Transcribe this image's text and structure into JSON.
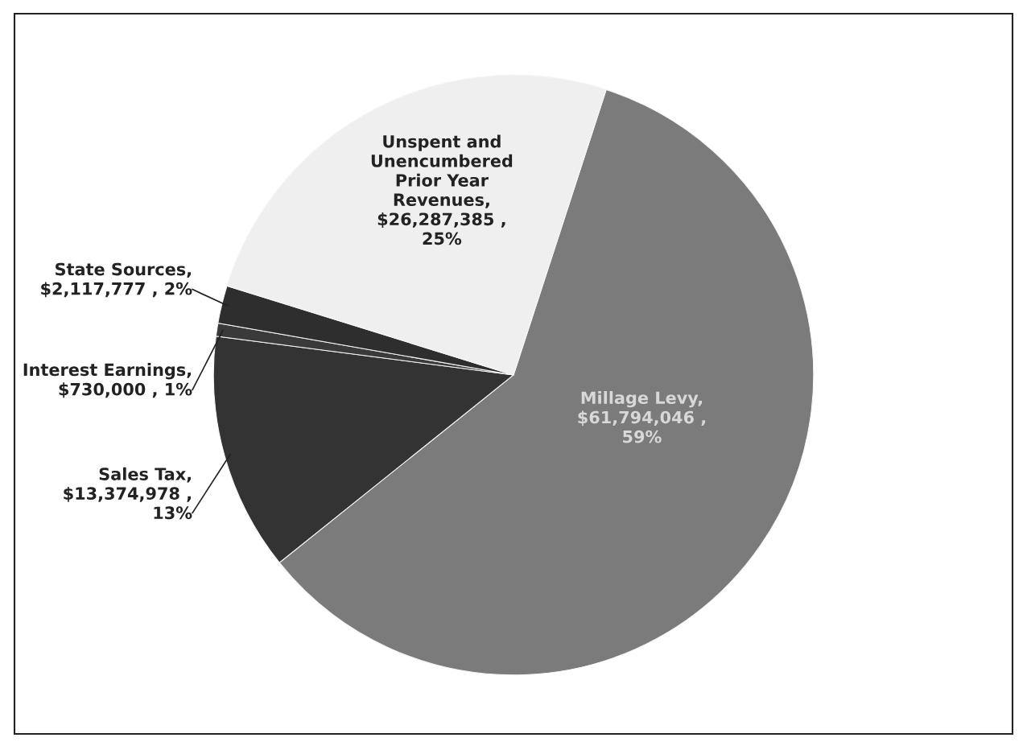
{
  "chart_data": {
    "type": "pie",
    "categories": [
      "Millage Levy",
      "Sales Tax",
      "Interest Earnings",
      "State Sources",
      "Unspent and\nUnencumbered\nPrior Year\nRevenues"
    ],
    "values": [
      61794046,
      13374978,
      730000,
      2117777,
      26287385
    ],
    "colors": [
      "#7b7b7b",
      "#333333",
      "#3a3a3a",
      "#2e2e2e",
      "#efefef"
    ],
    "value_labels": [
      ",\n$61,794,046 ,\n59%",
      ",\n$13,374,978 ,\n13%",
      ",\n$730,000 , 1%",
      ",\n$2,117,777 , 2%",
      ",\n$26,287,385 ,\n25%"
    ],
    "legend": false
  }
}
